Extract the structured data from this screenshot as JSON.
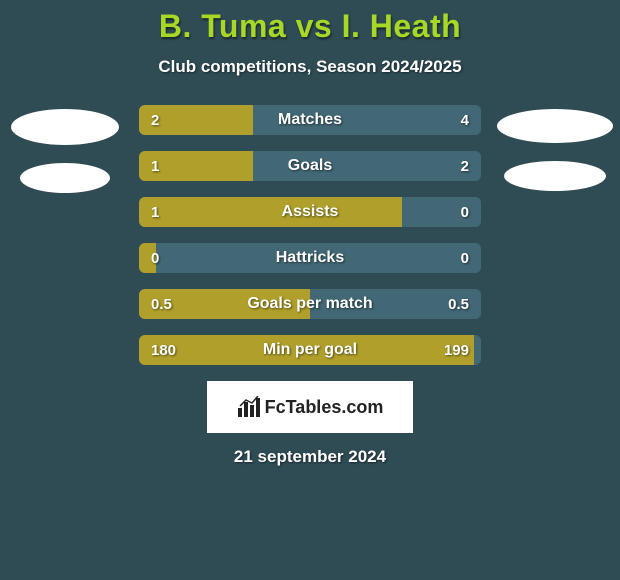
{
  "background_color": "#2f4c55",
  "title_color": "#a7d826",
  "text_color": "#ffffff",
  "logo_bg": "#ffffff",
  "logo_text_color": "#222222",
  "title": "B. Tuma vs I. Heath",
  "subtitle": "Club competitions, Season 2024/2025",
  "date": "21 september 2024",
  "bar_style": {
    "left_color": "#b0a02b",
    "right_color": "#426876",
    "track_color": "#426876",
    "label_fontsize": 16,
    "value_fontsize": 15,
    "height": 30,
    "border_radius": 6,
    "gap": 16
  },
  "logo": {
    "text": "FcTables.com"
  },
  "stats": [
    {
      "label": "Matches",
      "left_val": "2",
      "right_val": "4",
      "left_pct": 33.3
    },
    {
      "label": "Goals",
      "left_val": "1",
      "right_val": "2",
      "left_pct": 33.3
    },
    {
      "label": "Assists",
      "left_val": "1",
      "right_val": "0",
      "left_pct": 77.0
    },
    {
      "label": "Hattricks",
      "left_val": "0",
      "right_val": "0",
      "left_pct": 5.0
    },
    {
      "label": "Goals per match",
      "left_val": "0.5",
      "right_val": "0.5",
      "left_pct": 50.0
    },
    {
      "label": "Min per goal",
      "left_val": "180",
      "right_val": "199",
      "left_pct": 98.0
    }
  ]
}
